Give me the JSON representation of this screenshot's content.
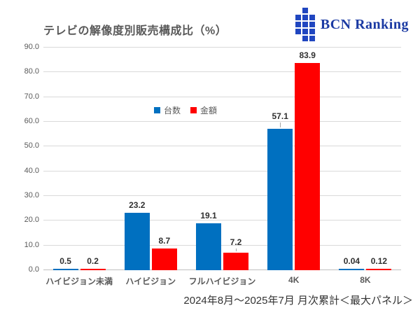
{
  "logo": {
    "text": "BCN Ranking",
    "color": "#1b3aa3"
  },
  "chart_data": {
    "type": "bar",
    "title": "テレビの解像度別販売構成比（%）",
    "categories": [
      "ハイビジョン未満",
      "ハイビジョン",
      "フルハイビジョン",
      "4K",
      "8K"
    ],
    "series": [
      {
        "name": "台数",
        "color": "#0070c0",
        "values": [
          0.5,
          23.2,
          19.1,
          57.1,
          0.04
        ],
        "labels": [
          "0.5",
          "23.2",
          "19.1",
          "57.1",
          "0.04"
        ]
      },
      {
        "name": "金額",
        "color": "#ff0000",
        "values": [
          0.2,
          8.7,
          7.2,
          83.9,
          0.12
        ],
        "labels": [
          "0.2",
          "8.7",
          "7.2",
          "83.9",
          "0.12"
        ]
      }
    ],
    "ylim": [
      0,
      90
    ],
    "ytick_step": 10,
    "ytick_labels": [
      "0.0",
      "10.0",
      "20.0",
      "30.0",
      "40.0",
      "50.0",
      "60.0",
      "70.0",
      "80.0",
      "90.0"
    ],
    "grid": true,
    "legend_position": "inside-upper-area",
    "legend": [
      {
        "label": "台数",
        "color": "#0070c0"
      },
      {
        "label": "金額",
        "color": "#ff0000"
      }
    ],
    "leader_lines": [
      {
        "series": 0,
        "index": 3,
        "gap": 10
      },
      {
        "series": 1,
        "index": 2,
        "gap": 7
      }
    ]
  },
  "footer": {
    "caption": "2024年8月～2025年7月 月次累計＜最大パネル＞"
  }
}
